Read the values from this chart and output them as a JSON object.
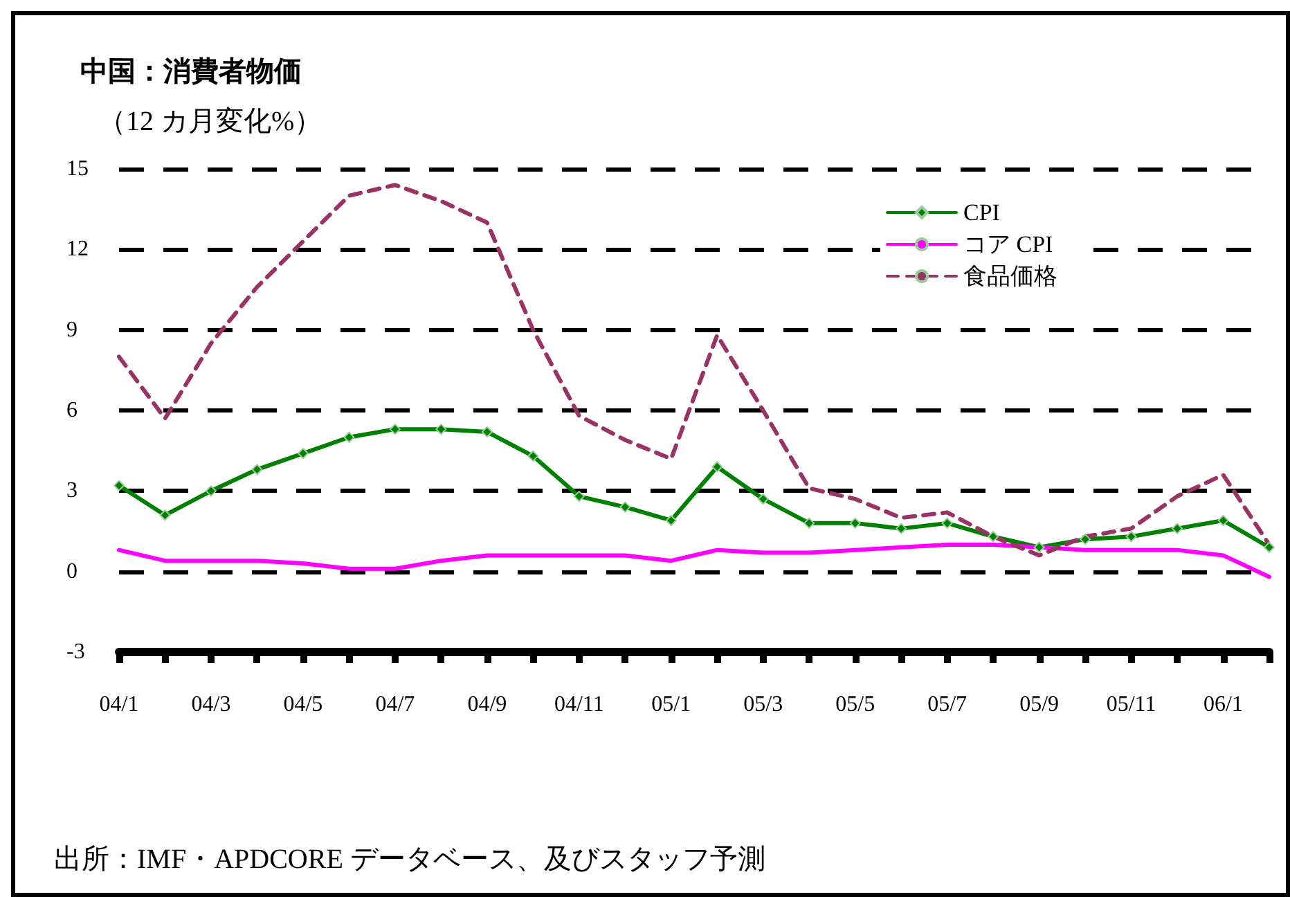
{
  "chart_data": {
    "type": "line",
    "title": "中国：消費者物価",
    "subtitle": "（12 カ月変化%）",
    "categories": [
      "04/1",
      null,
      "04/3",
      null,
      "04/5",
      null,
      "04/7",
      null,
      "04/9",
      null,
      "04/11",
      null,
      "05/1",
      null,
      "05/3",
      null,
      "05/5",
      null,
      "05/7",
      null,
      "05/9",
      null,
      "05/11",
      null,
      "06/1",
      null
    ],
    "series": [
      {
        "name": "CPI",
        "color": "#008000",
        "marker": "diamond",
        "line_style": "solid",
        "values": [
          3.2,
          2.1,
          3.0,
          3.8,
          4.4,
          5.0,
          5.3,
          5.3,
          5.2,
          4.3,
          2.8,
          2.4,
          1.9,
          3.9,
          2.7,
          1.8,
          1.8,
          1.6,
          1.8,
          1.3,
          0.9,
          1.2,
          1.3,
          1.6,
          1.9,
          0.9
        ]
      },
      {
        "name": "コア CPI",
        "color": "#ff00ff",
        "marker": "none",
        "line_style": "solid",
        "values": [
          0.8,
          0.4,
          0.4,
          0.4,
          0.3,
          0.1,
          0.1,
          0.4,
          0.6,
          0.6,
          0.6,
          0.6,
          0.4,
          0.8,
          0.7,
          0.7,
          0.8,
          0.9,
          1.0,
          1.0,
          0.9,
          0.8,
          0.8,
          0.8,
          0.6,
          -0.2
        ]
      },
      {
        "name": "食品価格",
        "color": "#993366",
        "marker": "none",
        "line_style": "dashed",
        "values": [
          8.0,
          5.7,
          8.5,
          10.6,
          12.3,
          14.0,
          14.4,
          13.8,
          13.0,
          9.0,
          5.8,
          4.9,
          4.2,
          8.8,
          6.0,
          3.1,
          2.7,
          2.0,
          2.2,
          1.3,
          0.6,
          1.3,
          1.6,
          2.8,
          3.6,
          1.0
        ]
      }
    ],
    "ylim": [
      -3,
      15
    ],
    "yticks": [
      -3,
      0,
      3,
      6,
      9,
      12,
      15
    ],
    "grid": "y",
    "legend": "top right",
    "annotations": [
      "出所：IMF・APDCORE データベース、及びスタッフ予測"
    ]
  }
}
